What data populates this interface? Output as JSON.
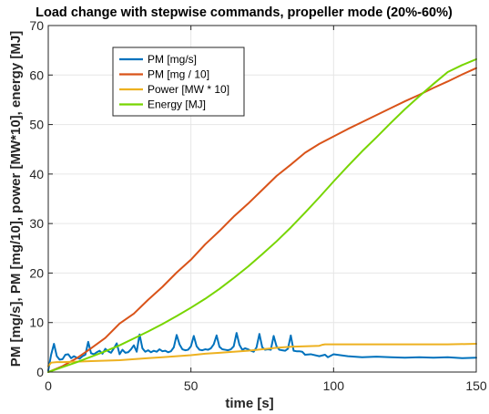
{
  "chart_data": {
    "type": "line",
    "title": "Load change with stepwise commands, propeller mode (20%-60%)",
    "xlabel": "time [s]",
    "ylabel": "PM [mg/s], PM [mg/10], power [MW*10], energy [MJ]",
    "xlim": [
      0,
      150
    ],
    "ylim": [
      0,
      70
    ],
    "xticks": [
      0,
      50,
      100,
      150
    ],
    "yticks": [
      0,
      10,
      20,
      30,
      40,
      50,
      60,
      70
    ],
    "grid": true,
    "legend_position": "top-left",
    "series": [
      {
        "name": "PM [mg/s]",
        "color": "#0072BD",
        "x": [
          0,
          1,
          2,
          3,
          4,
          5,
          6,
          7,
          8,
          9,
          10,
          11,
          12,
          13,
          14,
          15,
          16,
          17,
          18,
          19,
          20,
          21,
          22,
          23,
          24,
          25,
          26,
          27,
          28,
          29,
          30,
          31,
          32,
          33,
          34,
          35,
          36,
          37,
          38,
          39,
          40,
          41,
          42,
          43,
          44,
          45,
          46,
          47,
          48,
          49,
          50,
          51,
          52,
          53,
          54,
          55,
          56,
          57,
          58,
          59,
          60,
          61,
          62,
          63,
          64,
          65,
          66,
          67,
          68,
          69,
          70,
          71,
          72,
          73,
          74,
          75,
          76,
          77,
          78,
          79,
          80,
          81,
          82,
          83,
          84,
          85,
          86,
          87,
          88,
          89,
          90,
          92,
          95,
          97,
          98,
          100,
          105,
          110,
          115,
          120,
          125,
          130,
          135,
          140,
          145,
          150
        ],
        "values": [
          0.3,
          3.5,
          5.7,
          3.2,
          2.5,
          2.6,
          3.5,
          3.6,
          2.8,
          3.2,
          2.9,
          2.7,
          3.2,
          3.5,
          6.1,
          3.8,
          3.6,
          4.0,
          4.3,
          3.7,
          4.7,
          4.2,
          3.9,
          4.8,
          5.8,
          3.6,
          4.5,
          3.9,
          4.0,
          4.6,
          5.4,
          4.1,
          7.6,
          4.8,
          4.1,
          4.4,
          4.0,
          4.3,
          4.1,
          4.6,
          4.2,
          4.3,
          4.0,
          4.2,
          5.0,
          7.5,
          5.6,
          4.6,
          4.4,
          4.5,
          5.2,
          7.3,
          5.2,
          4.5,
          4.4,
          4.6,
          4.5,
          4.8,
          5.6,
          7.4,
          5.1,
          4.6,
          4.5,
          4.4,
          4.6,
          5.2,
          7.9,
          5.5,
          4.5,
          4.8,
          4.6,
          4.3,
          4.1,
          5.0,
          7.7,
          5.0,
          4.5,
          4.6,
          4.5,
          7.3,
          5.2,
          4.5,
          4.4,
          4.3,
          4.7,
          7.4,
          4.3,
          4.2,
          4.2,
          4.1,
          3.5,
          3.6,
          3.2,
          3.5,
          3.0,
          3.6,
          3.2,
          3.0,
          3.1,
          3.0,
          2.9,
          3.0,
          2.9,
          3.0,
          2.8,
          2.9
        ]
      },
      {
        "name": "PM [mg / 10]",
        "color": "#D95319",
        "x": [
          0,
          5,
          10,
          15,
          20,
          25,
          30,
          35,
          40,
          45,
          50,
          55,
          60,
          65,
          70,
          75,
          80,
          85,
          90,
          95,
          100,
          105,
          110,
          115,
          120,
          125,
          130,
          135,
          140,
          145,
          150
        ],
        "values": [
          0,
          1.2,
          2.8,
          4.8,
          6.9,
          9.8,
          11.8,
          14.6,
          17.2,
          20.1,
          22.7,
          25.8,
          28.5,
          31.4,
          34.0,
          36.8,
          39.6,
          41.9,
          44.3,
          46.1,
          47.6,
          49.1,
          50.5,
          51.9,
          53.3,
          54.7,
          56.0,
          57.4,
          58.7,
          60.1,
          61.4
        ]
      },
      {
        "name": "Power [MW * 10]",
        "color": "#EDB120",
        "x": [
          0,
          1,
          3,
          5,
          10,
          15,
          20,
          25,
          30,
          35,
          40,
          45,
          50,
          55,
          60,
          65,
          70,
          75,
          80,
          85,
          90,
          95,
          96,
          97,
          100,
          110,
          120,
          130,
          140,
          150
        ],
        "values": [
          1.2,
          1.9,
          2.0,
          2.0,
          2.1,
          2.2,
          2.3,
          2.4,
          2.6,
          2.8,
          3.0,
          3.2,
          3.4,
          3.7,
          3.9,
          4.1,
          4.3,
          4.6,
          4.9,
          5.1,
          5.2,
          5.3,
          5.5,
          5.6,
          5.6,
          5.6,
          5.6,
          5.6,
          5.6,
          5.7
        ]
      },
      {
        "name": "Energy [MJ]",
        "color": "#77D500",
        "x": [
          0,
          5,
          10,
          15,
          20,
          25,
          30,
          35,
          40,
          45,
          50,
          55,
          60,
          65,
          70,
          75,
          80,
          85,
          90,
          95,
          100,
          105,
          110,
          115,
          120,
          125,
          130,
          135,
          140,
          145,
          150
        ],
        "values": [
          0,
          1.0,
          2.0,
          3.1,
          4.2,
          5.4,
          6.8,
          8.2,
          9.7,
          11.3,
          13.0,
          14.8,
          16.8,
          19.0,
          21.3,
          23.8,
          26.4,
          29.2,
          32.2,
          35.3,
          38.5,
          41.6,
          44.6,
          47.4,
          50.3,
          53.1,
          55.7,
          58.2,
          60.6,
          62.0,
          63.2
        ]
      }
    ]
  }
}
